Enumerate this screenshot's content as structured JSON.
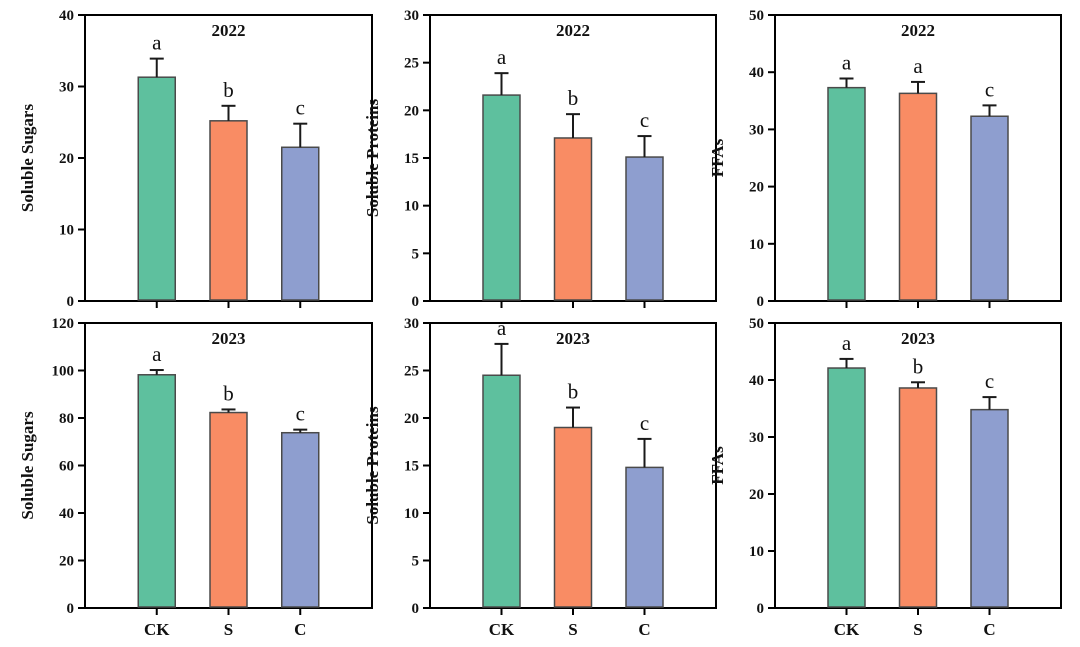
{
  "figure": {
    "background": "#ffffff",
    "categories": [
      "CK",
      "S",
      "C"
    ]
  },
  "colors": {
    "ck_fill": "#5ec09e",
    "s_fill": "#f98c64",
    "c_fill": "#8e9ecf",
    "bar_edge": "#4a4a4a",
    "error_bar": "#1a1a1a",
    "axis": "#000000"
  },
  "chart_data": [
    {
      "type": "bar",
      "title": "2022",
      "ylabel": "Soluble Sugars",
      "categories": [
        "CK",
        "S",
        "C"
      ],
      "values": [
        31.3,
        25.2,
        21.5
      ],
      "errors": [
        2.6,
        2.1,
        3.3
      ],
      "letters": [
        "a",
        "b",
        "c"
      ],
      "ylim": [
        0,
        40
      ],
      "ytick_step": 10,
      "show_x_labels": false,
      "grid": false,
      "legend": "none"
    },
    {
      "type": "bar",
      "title": "2022",
      "ylabel": "Soluble Proteins",
      "categories": [
        "CK",
        "S",
        "C"
      ],
      "values": [
        21.6,
        17.1,
        15.1
      ],
      "errors": [
        2.3,
        2.5,
        2.2
      ],
      "letters": [
        "a",
        "b",
        "c"
      ],
      "ylim": [
        0,
        30
      ],
      "ytick_step": 5,
      "show_x_labels": false,
      "grid": false,
      "legend": "none"
    },
    {
      "type": "bar",
      "title": "2022",
      "ylabel": "FFAs",
      "categories": [
        "CK",
        "S",
        "C"
      ],
      "values": [
        37.3,
        36.3,
        32.3
      ],
      "errors": [
        1.6,
        2.0,
        1.9
      ],
      "letters": [
        "a",
        "a",
        "c"
      ],
      "ylim": [
        0,
        50
      ],
      "ytick_step": 10,
      "show_x_labels": false,
      "grid": false,
      "legend": "none"
    },
    {
      "type": "bar",
      "title": "2023",
      "ylabel": "Soluble Sugars",
      "categories": [
        "CK",
        "S",
        "C"
      ],
      "values": [
        98.2,
        82.3,
        73.8
      ],
      "errors": [
        2.0,
        1.3,
        1.3
      ],
      "letters": [
        "a",
        "b",
        "c"
      ],
      "ylim": [
        0,
        120
      ],
      "ytick_step": 20,
      "show_x_labels": true,
      "grid": false,
      "legend": "none"
    },
    {
      "type": "bar",
      "title": "2023",
      "ylabel": "Soluble Proteins",
      "categories": [
        "CK",
        "S",
        "C"
      ],
      "values": [
        24.5,
        19.0,
        14.8
      ],
      "errors": [
        3.3,
        2.1,
        3.0
      ],
      "letters": [
        "a",
        "b",
        "c"
      ],
      "ylim": [
        0,
        30
      ],
      "ytick_step": 5,
      "show_x_labels": true,
      "grid": false,
      "legend": "none"
    },
    {
      "type": "bar",
      "title": "2023",
      "ylabel": "FFAs",
      "categories": [
        "CK",
        "S",
        "C"
      ],
      "values": [
        42.1,
        38.6,
        34.8
      ],
      "errors": [
        1.6,
        1.0,
        2.2
      ],
      "letters": [
        "a",
        "b",
        "c"
      ],
      "ylim": [
        0,
        50
      ],
      "ytick_step": 10,
      "show_x_labels": true,
      "grid": false,
      "legend": "none"
    }
  ]
}
